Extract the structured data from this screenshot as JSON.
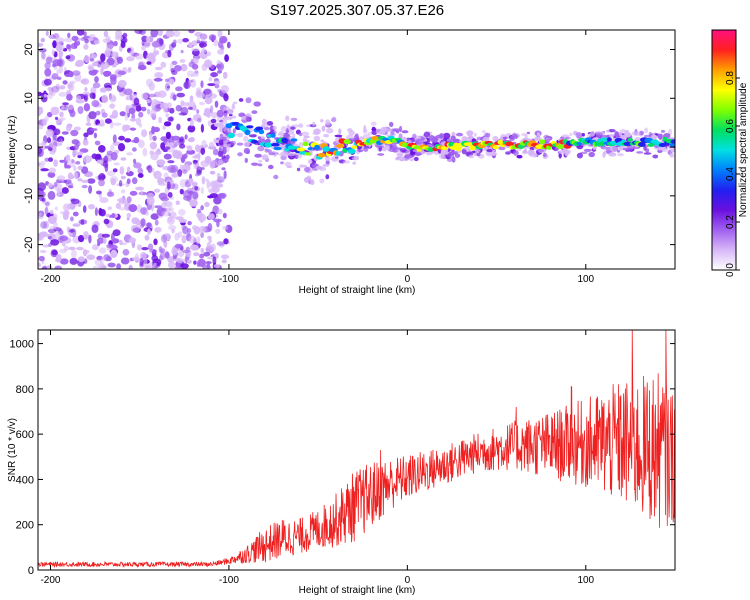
{
  "title": "S197.2025.307.05.37.E26",
  "chart_data": [
    {
      "type": "heatmap",
      "name": "spectrogram",
      "xlabel": "Height of straight line (km)",
      "ylabel": "Frequency (Hz)",
      "xlim": [
        -207,
        150
      ],
      "ylim": [
        -25,
        24
      ],
      "xticks": [
        -200,
        -100,
        0,
        100
      ],
      "xtick_labels": [
        "-200",
        "-100",
        "0",
        "100"
      ],
      "yticks": [
        20,
        10,
        0,
        -10,
        -20
      ],
      "ytick_labels": [
        "20",
        "10",
        "0",
        "-10",
        "-20"
      ],
      "colorbar": {
        "label": "Normalized spectral amplitude",
        "range": [
          0,
          1
        ],
        "ticks": [
          0.0,
          0.2,
          0.4,
          0.6,
          0.8
        ],
        "tick_labels": [
          "0.0",
          "0.2",
          "0.4",
          "0.6",
          "0.8"
        ],
        "stops": [
          "#ffffff",
          "#d8b8f8",
          "#a060f0",
          "#6a10e0",
          "#2020f0",
          "#0080ff",
          "#00e0e0",
          "#00e060",
          "#80ff00",
          "#ffff00",
          "#ffa000",
          "#ff2020",
          "#ff1080"
        ]
      },
      "ridge": [
        {
          "x": -100,
          "freq": 4
        },
        {
          "x": -90,
          "freq": 3
        },
        {
          "x": -80,
          "freq": 2
        },
        {
          "x": -70,
          "freq": 0
        },
        {
          "x": -60,
          "freq": 0
        },
        {
          "x": -50,
          "freq": -1
        },
        {
          "x": -40,
          "freq": 0
        },
        {
          "x": -30,
          "freq": 0
        },
        {
          "x": -20,
          "freq": 1.5
        },
        {
          "x": -10,
          "freq": 1.5
        },
        {
          "x": -5,
          "freq": 1
        },
        {
          "x": 0,
          "freq": 0
        },
        {
          "x": 20,
          "freq": 0
        },
        {
          "x": 40,
          "freq": 0.5
        },
        {
          "x": 60,
          "freq": 0.5
        },
        {
          "x": 80,
          "freq": 0.5
        },
        {
          "x": 100,
          "freq": 1
        },
        {
          "x": 120,
          "freq": 1
        },
        {
          "x": 150,
          "freq": 1
        }
      ]
    },
    {
      "type": "line",
      "name": "snr",
      "xlabel": "Height of straight line (km)",
      "ylabel": "SNR (10 * v/v)",
      "color": "#ee2020",
      "xlim": [
        -207,
        150
      ],
      "ylim": [
        0,
        1060
      ],
      "xticks": [
        -200,
        -100,
        0,
        100
      ],
      "xtick_labels": [
        "-200",
        "-100",
        "0",
        "100"
      ],
      "yticks": [
        0,
        200,
        400,
        600,
        800,
        1000
      ],
      "ytick_labels": [
        "0",
        "200",
        "400",
        "600",
        "800",
        "1000"
      ],
      "envelope": [
        {
          "x": -207,
          "mean": 25,
          "amp": 10
        },
        {
          "x": -110,
          "mean": 25,
          "amp": 10
        },
        {
          "x": -100,
          "mean": 40,
          "amp": 15
        },
        {
          "x": -90,
          "mean": 70,
          "amp": 40
        },
        {
          "x": -80,
          "mean": 110,
          "amp": 80
        },
        {
          "x": -70,
          "mean": 140,
          "amp": 90
        },
        {
          "x": -60,
          "mean": 150,
          "amp": 80
        },
        {
          "x": -50,
          "mean": 180,
          "amp": 90
        },
        {
          "x": -40,
          "mean": 220,
          "amp": 120
        },
        {
          "x": -30,
          "mean": 280,
          "amp": 160
        },
        {
          "x": -20,
          "mean": 330,
          "amp": 150
        },
        {
          "x": -10,
          "mean": 380,
          "amp": 120
        },
        {
          "x": 0,
          "mean": 410,
          "amp": 100
        },
        {
          "x": 20,
          "mean": 460,
          "amp": 90
        },
        {
          "x": 40,
          "mean": 520,
          "amp": 90
        },
        {
          "x": 60,
          "mean": 550,
          "amp": 110
        },
        {
          "x": 80,
          "mean": 550,
          "amp": 150
        },
        {
          "x": 100,
          "mean": 560,
          "amp": 200
        },
        {
          "x": 120,
          "mean": 560,
          "amp": 280
        },
        {
          "x": 140,
          "mean": 530,
          "amp": 350
        },
        {
          "x": 150,
          "mean": 500,
          "amp": 300
        }
      ],
      "peaks": [
        {
          "x": 126,
          "y": 1060
        },
        {
          "x": 145,
          "y": 1060
        },
        {
          "x": -15,
          "y": 530
        },
        {
          "x": 61,
          "y": 720
        },
        {
          "x": 92,
          "y": 810
        }
      ]
    }
  ]
}
